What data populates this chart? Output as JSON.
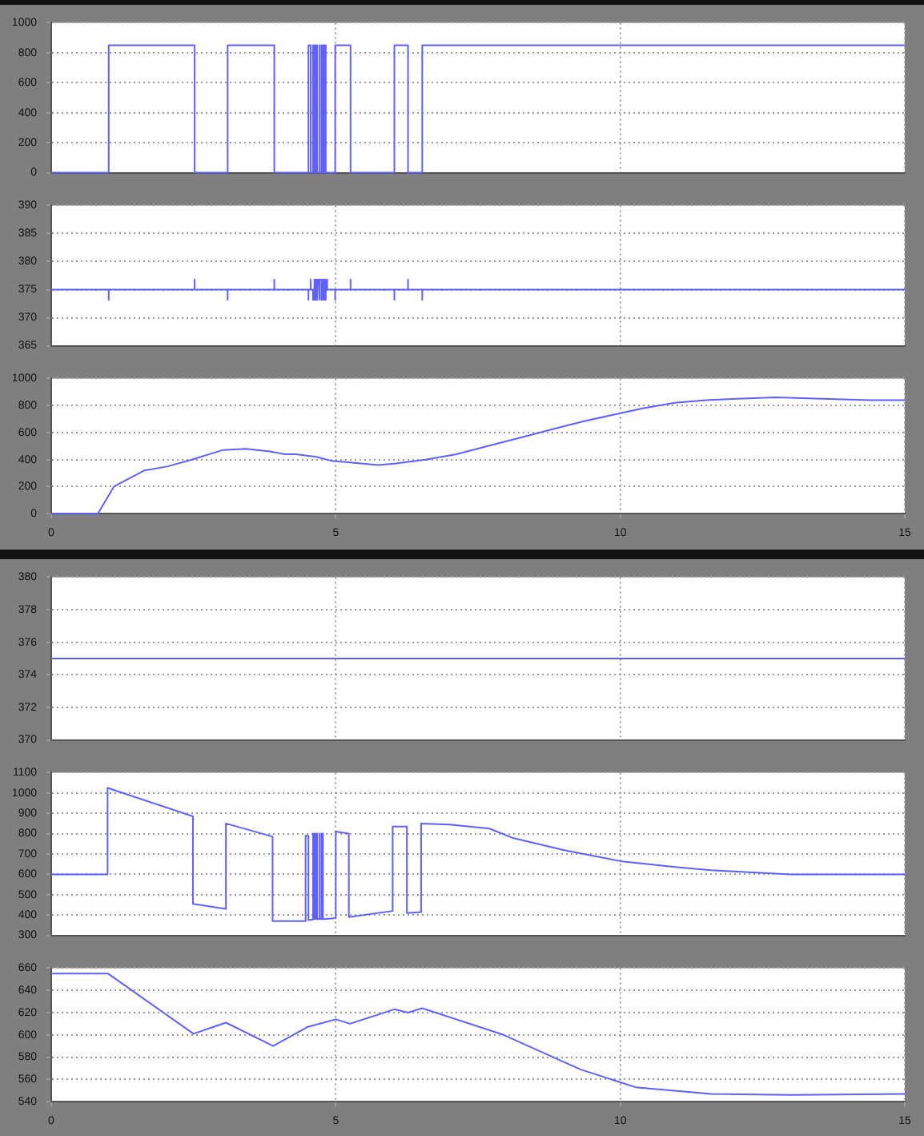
{
  "chart_data": [
    {
      "type": "line",
      "xlim": [
        0,
        15
      ],
      "xticks": [
        0,
        5,
        10,
        15
      ],
      "ylim": [
        0,
        1000
      ],
      "yticks": [
        0,
        200,
        400,
        600,
        800,
        1000
      ],
      "grid": true,
      "tick_labels": "y",
      "series": [
        {
          "color": "#6060ff",
          "x": [
            0,
            1.01,
            1.01,
            2.52,
            2.52,
            3.1,
            3.1,
            3.92,
            3.92,
            4.52,
            4.52,
            4.56,
            4.56,
            4.6,
            4.6,
            4.625,
            4.625,
            4.65,
            4.65,
            4.675,
            4.675,
            4.7,
            4.7,
            4.725,
            4.725,
            4.75,
            4.75,
            4.775,
            4.775,
            4.8,
            4.8,
            4.825,
            4.825,
            4.85,
            4.99,
            4.99,
            5.26,
            5.26,
            6.03,
            6.03,
            6.27,
            6.27,
            6.52,
            6.52,
            15
          ],
          "values": [
            0,
            0,
            850,
            850,
            0,
            0,
            850,
            850,
            0,
            0,
            850,
            850,
            0,
            0,
            850,
            850,
            0,
            0,
            850,
            850,
            0,
            0,
            850,
            850,
            0,
            0,
            850,
            850,
            0,
            0,
            850,
            850,
            0,
            0,
            0,
            850,
            850,
            0,
            0,
            850,
            850,
            0,
            0,
            850,
            850
          ]
        }
      ]
    },
    {
      "type": "line",
      "xlim": [
        0,
        15
      ],
      "xticks": [
        0,
        5,
        10,
        15
      ],
      "ylim": [
        365,
        390
      ],
      "yticks": [
        365,
        370,
        375,
        380,
        385,
        390
      ],
      "grid": true,
      "tick_labels": "y",
      "series": [
        {
          "color": "#6060ff",
          "x": [
            0,
            1.01,
            1.01,
            1.01,
            2.52,
            2.52,
            2.52,
            3.1,
            3.1,
            3.1,
            3.92,
            3.92,
            3.92,
            4.52,
            4.52,
            4.52,
            4.56,
            4.56,
            4.56,
            4.6,
            4.6,
            4.625,
            4.625,
            4.65,
            4.65,
            4.675,
            4.675,
            4.7,
            4.7,
            4.725,
            4.725,
            4.75,
            4.75,
            4.775,
            4.775,
            4.8,
            4.8,
            4.825,
            4.825,
            4.85,
            4.85,
            4.99,
            4.99,
            4.99,
            5.26,
            5.26,
            5.26,
            6.03,
            6.03,
            6.03,
            6.27,
            6.27,
            6.27,
            6.52,
            6.52,
            6.52,
            15
          ],
          "values": [
            375,
            375,
            373.2,
            375,
            375,
            376.8,
            375,
            375,
            373.2,
            375,
            375,
            376.8,
            375,
            375,
            373.2,
            375,
            375,
            376.8,
            375,
            375,
            373.2,
            373.2,
            376.8,
            376.8,
            373.2,
            373.2,
            376.8,
            376.8,
            373.2,
            373.2,
            376.8,
            376.8,
            373.2,
            373.2,
            376.8,
            376.8,
            373.2,
            373.2,
            376.8,
            376.8,
            375,
            375,
            373.2,
            375,
            375,
            376.8,
            375,
            375,
            373.2,
            375,
            375,
            376.8,
            375,
            375,
            373.2,
            375,
            375
          ]
        }
      ]
    },
    {
      "type": "line",
      "xlim": [
        0,
        15
      ],
      "xticks": [
        0,
        5,
        10,
        15
      ],
      "ylim": [
        0,
        1000
      ],
      "yticks": [
        0,
        200,
        400,
        600,
        800,
        1000
      ],
      "grid": true,
      "series": [
        {
          "color": "#6060ff",
          "x": [
            0,
            0.82,
            1.1,
            1.64,
            2.05,
            2.47,
            3.01,
            3.42,
            3.84,
            4.11,
            4.3,
            4.66,
            4.93,
            5.21,
            5.48,
            5.75,
            6.03,
            6.58,
            7.12,
            7.67,
            8.22,
            8.77,
            9.32,
            9.86,
            10.41,
            10.96,
            11.51,
            12.05,
            12.74,
            13.56,
            14.38,
            15
          ],
          "values": [
            0,
            0,
            200,
            320,
            350,
            400,
            470,
            480,
            460,
            440,
            440,
            420,
            390,
            380,
            370,
            360,
            370,
            400,
            440,
            500,
            560,
            620,
            680,
            730,
            780,
            820,
            840,
            850,
            860,
            850,
            840,
            840
          ]
        }
      ]
    },
    {
      "type": "line",
      "xlim": [
        0,
        15
      ],
      "xticks": [
        0,
        5,
        10,
        15
      ],
      "ylim": [
        370,
        380
      ],
      "yticks": [
        370,
        372,
        374,
        376,
        378,
        380
      ],
      "grid": true,
      "tick_labels": "y",
      "series": [
        {
          "color": "#6060ff",
          "x": [
            0,
            15
          ],
          "values": [
            375,
            375
          ]
        }
      ]
    },
    {
      "type": "line",
      "xlim": [
        0,
        15
      ],
      "xticks": [
        0,
        5,
        10,
        15
      ],
      "ylim": [
        300,
        1100
      ],
      "yticks": [
        300,
        400,
        500,
        600,
        700,
        800,
        900,
        1000,
        1100
      ],
      "grid": true,
      "tick_labels": "y",
      "series": [
        {
          "color": "#6060ff",
          "x": [
            0,
            0.99,
            0.99,
            2.49,
            2.49,
            3.07,
            3.07,
            3.89,
            3.89,
            4.47,
            4.47,
            4.52,
            4.52,
            4.6,
            4.6,
            4.625,
            4.625,
            4.65,
            4.65,
            4.675,
            4.675,
            4.7,
            4.7,
            4.725,
            4.725,
            4.75,
            4.75,
            4.775,
            4.775,
            4.8,
            5.0,
            5.0,
            5.23,
            5.23,
            6.0,
            6.0,
            6.25,
            6.25,
            6.5,
            6.5,
            7,
            7.7,
            8.1,
            9,
            10,
            11,
            11.6,
            13,
            15
          ],
          "values": [
            600,
            600,
            1025,
            885,
            455,
            430,
            850,
            785,
            370,
            370,
            790,
            790,
            375,
            378,
            800,
            800,
            380,
            380,
            800,
            800,
            380,
            380,
            800,
            800,
            380,
            380,
            800,
            800,
            380,
            380,
            385,
            810,
            800,
            390,
            420,
            835,
            835,
            410,
            415,
            850,
            845,
            825,
            780,
            720,
            665,
            635,
            620,
            600,
            600
          ]
        }
      ]
    },
    {
      "type": "line",
      "xlim": [
        0,
        15
      ],
      "xticks": [
        0,
        5,
        10,
        15
      ],
      "ylim": [
        540,
        660
      ],
      "yticks": [
        540,
        560,
        580,
        600,
        620,
        640,
        660
      ],
      "grid": true,
      "series": [
        {
          "color": "#6060ff",
          "x": [
            0,
            1.0,
            2.5,
            3.07,
            3.9,
            4.5,
            5.0,
            5.25,
            6.03,
            6.27,
            6.52,
            7.95,
            9.3,
            10.27,
            11.6,
            13,
            15
          ],
          "values": [
            655,
            655,
            601,
            611,
            590,
            607,
            614,
            610,
            623,
            620,
            624,
            600,
            569,
            553,
            547,
            546,
            547
          ]
        }
      ]
    }
  ]
}
